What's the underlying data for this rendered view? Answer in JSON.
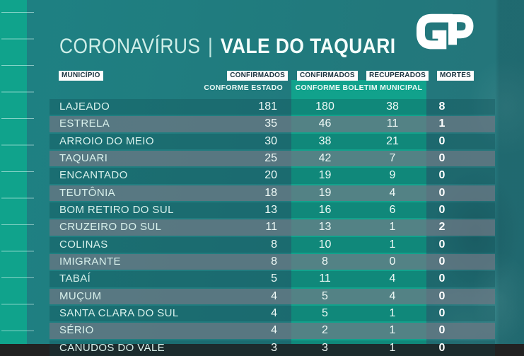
{
  "page": {
    "title_part1": "CORONAVÍRUS",
    "title_separator": "|",
    "title_part2": "VALE DO TAQUARI",
    "logo_text": "GP"
  },
  "table": {
    "headers": {
      "municipio": "MUNICÍPIO",
      "confirmados_estado": "CONFIRMADOS",
      "estado_sub": "CONFORME ESTADO",
      "confirmados_municipal": "CONFIRMADOS",
      "recuperados": "RECUPERADOS",
      "municipal_sub": "CONFORME BOLETIM MUNICIPAL",
      "mortes": "MORTES"
    }
  },
  "chart_data": {
    "type": "table",
    "title": "CORONAVÍRUS | VALE DO TAQUARI",
    "columns": [
      "MUNICÍPIO",
      "CONFIRMADOS (CONFORME ESTADO)",
      "CONFIRMADOS (CONFORME BOLETIM MUNICIPAL)",
      "RECUPERADOS (CONFORME BOLETIM MUNICIPAL)",
      "MORTES"
    ],
    "rows": [
      [
        "LAJEADO",
        181,
        180,
        38,
        8
      ],
      [
        "ESTRELA",
        35,
        46,
        11,
        1
      ],
      [
        "ARROIO DO MEIO",
        30,
        38,
        21,
        0
      ],
      [
        "TAQUARI",
        25,
        42,
        7,
        0
      ],
      [
        "ENCANTADO",
        20,
        19,
        9,
        0
      ],
      [
        "TEUTÔNIA",
        18,
        19,
        4,
        0
      ],
      [
        "BOM RETIRO DO SUL",
        13,
        16,
        6,
        0
      ],
      [
        "CRUZEIRO DO SUL",
        11,
        13,
        1,
        2
      ],
      [
        "COLINAS",
        8,
        10,
        1,
        0
      ],
      [
        "IMIGRANTE",
        8,
        8,
        0,
        0
      ],
      [
        "TABAÍ",
        5,
        11,
        4,
        0
      ],
      [
        "MUÇUM",
        4,
        5,
        4,
        0
      ],
      [
        "SANTA CLARA DO SUL",
        4,
        5,
        1,
        0
      ],
      [
        "SÉRIO",
        4,
        2,
        1,
        0
      ],
      [
        "CANUDOS DO VALE",
        3,
        3,
        1,
        0
      ]
    ]
  },
  "colors": {
    "background": "#22787B",
    "accent_green": "#11A28C",
    "row_gray": "#6E7682",
    "badge_bg": "#FDFDFD",
    "badge_text": "#1A3440",
    "text_light": "#D9F1EC",
    "text_white": "#FFFFFF"
  }
}
